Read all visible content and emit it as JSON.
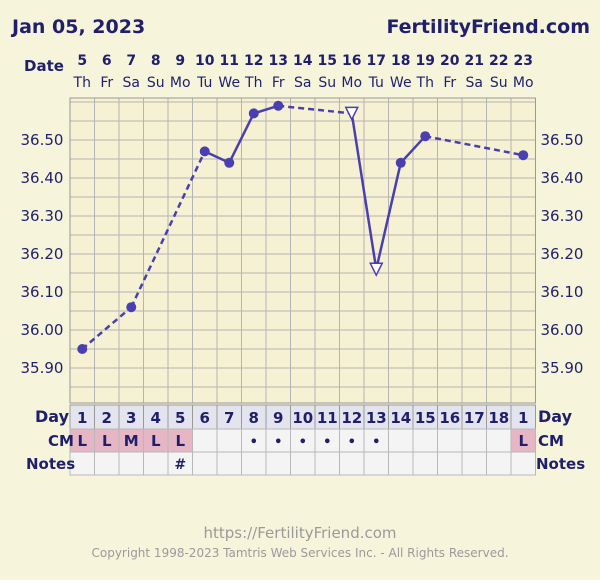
{
  "header": {
    "date": "Jan 05, 2023",
    "site": "FertilityFriend.com",
    "date_label": "Date"
  },
  "chart_data": {
    "type": "line",
    "title": "",
    "xlabel": "",
    "ylabel": "",
    "ylim": [
      35.8,
      36.6
    ],
    "y_ticks": [
      "36.50",
      "36.40",
      "36.30",
      "36.20",
      "36.10",
      "36.00",
      "35.90"
    ],
    "categories": [
      "5",
      "6",
      "7",
      "8",
      "9",
      "10",
      "11",
      "12",
      "13",
      "14",
      "15",
      "16",
      "17",
      "18",
      "19",
      "20",
      "21",
      "22",
      "23"
    ],
    "weekdays": [
      "Th",
      "Fr",
      "Sa",
      "Su",
      "Mo",
      "Tu",
      "We",
      "Th",
      "Fr",
      "Sa",
      "Su",
      "Mo",
      "Tu",
      "We",
      "Th",
      "Fr",
      "Sa",
      "Su",
      "Mo"
    ],
    "cycle_days": [
      "1",
      "2",
      "3",
      "4",
      "5",
      "6",
      "7",
      "8",
      "9",
      "10",
      "11",
      "12",
      "13",
      "14",
      "15",
      "16",
      "17",
      "18",
      "1"
    ],
    "temps": [
      35.95,
      null,
      36.06,
      null,
      null,
      36.47,
      36.44,
      36.57,
      36.59,
      null,
      null,
      36.57,
      36.16,
      36.44,
      36.51,
      null,
      null,
      null,
      36.46
    ],
    "excluded": [
      false,
      false,
      false,
      false,
      false,
      false,
      false,
      false,
      false,
      false,
      false,
      true,
      true,
      false,
      false,
      false,
      false,
      false,
      false
    ],
    "cm": [
      "L",
      "L",
      "M",
      "L",
      "L",
      "",
      "",
      "•",
      "•",
      "•",
      "•",
      "•",
      "•",
      "",
      "",
      "",
      "",
      "",
      "L"
    ],
    "notes": [
      "",
      "",
      "",
      "",
      "#",
      "",
      "",
      "",
      "",
      "",
      "",
      "",
      "",
      "",
      "",
      "",
      "",
      "",
      ""
    ],
    "grid": true,
    "colors": {
      "line": "#4a3fb0",
      "plot_bg": "#f6f1d3",
      "grid": "#b4b4b4",
      "label": "#1f1f6b",
      "period_cell": "#e6b6c4",
      "empty_cell": "#f4f4f4"
    }
  },
  "labels": {
    "day": "Day",
    "cm": "CM",
    "notes": "Notes"
  },
  "footer": {
    "url": "https://FertilityFriend.com",
    "copyright": "Copyright 1998-2023 Tamtris Web Services Inc. - All Rights Reserved."
  }
}
